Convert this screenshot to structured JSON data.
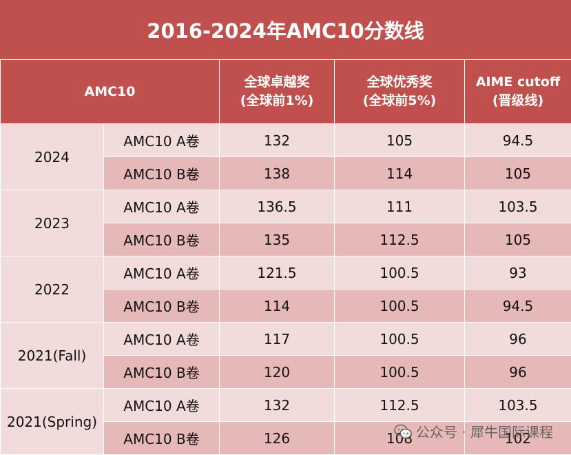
{
  "title": "2016-2024年AMC10分数线",
  "headers": {
    "competition": "AMC10",
    "top1_line1": "全球卓越奖",
    "top1_line2": "(全球前1%)",
    "top5_line1": "全球优秀奖",
    "top5_line2": "(全球前5%)",
    "aime_line1": "AIME cutoff",
    "aime_line2": "(晋级线)"
  },
  "rows": [
    {
      "year": "2024",
      "exam_a": "AMC10 A卷",
      "a_top1": "132",
      "a_top5": "105",
      "a_aime": "94.5",
      "exam_b": "AMC10 B卷",
      "b_top1": "138",
      "b_top5": "114",
      "b_aime": "105"
    },
    {
      "year": "2023",
      "exam_a": "AMC10 A卷",
      "a_top1": "136.5",
      "a_top5": "111",
      "a_aime": "103.5",
      "exam_b": "AMC10 B卷",
      "b_top1": "135",
      "b_top5": "112.5",
      "b_aime": "105"
    },
    {
      "year": "2022",
      "exam_a": "AMC10 A卷",
      "a_top1": "121.5",
      "a_top5": "100.5",
      "a_aime": "93",
      "exam_b": "AMC10 B卷",
      "b_top1": "114",
      "b_top5": "100.5",
      "b_aime": "94.5"
    },
    {
      "year": "2021(Fall)",
      "exam_a": "AMC10 A卷",
      "a_top1": "117",
      "a_top5": "100.5",
      "a_aime": "96",
      "exam_b": "AMC10 B卷",
      "b_top1": "120",
      "b_top5": "100.5",
      "b_aime": "96"
    },
    {
      "year": "2021(Spring)",
      "exam_a": "AMC10 A卷",
      "a_top1": "132",
      "a_top5": "112.5",
      "a_aime": "103.5",
      "exam_b": "AMC10 B卷",
      "b_top1": "126",
      "b_top5": "108",
      "b_aime": "102"
    }
  ],
  "watermark": "公众号 · 犀牛国际课程",
  "colors": {
    "header_bg": "#c0504d",
    "row_light": "#f2dcdb",
    "row_dark": "#e6b9b8"
  }
}
